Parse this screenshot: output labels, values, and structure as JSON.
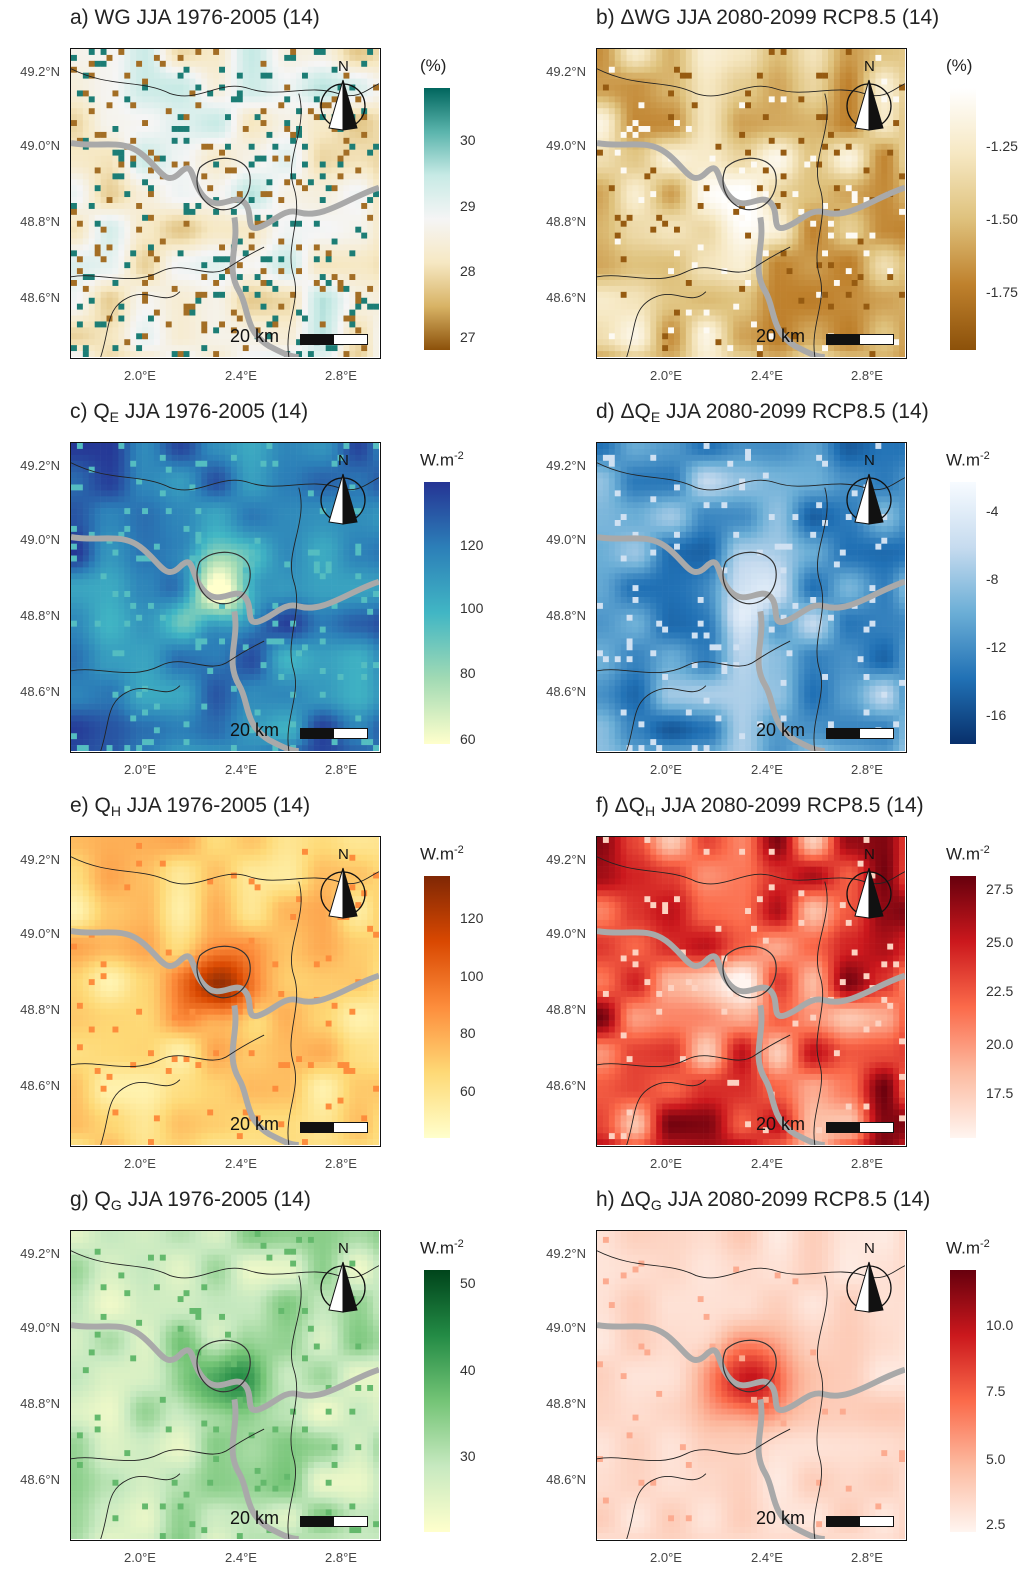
{
  "panels": [
    {
      "title_pre": "a) WG JJA 1976-2005 (14)",
      "title_sub": "",
      "title_post": "",
      "unit": "(%)",
      "unit_sup": "",
      "palette": "teal_brown",
      "ticks": [
        "30",
        "29",
        "28",
        "27"
      ],
      "tick_pos": [
        0.2,
        0.45,
        0.7,
        0.95
      ]
    },
    {
      "title_pre": "b) ΔWG JJA 2080-2099 RCP8.5 (14)",
      "title_sub": "",
      "title_post": "",
      "unit": "(%)",
      "unit_sup": "",
      "palette": "brown_white",
      "ticks": [
        "-1.25",
        "-1.50",
        "-1.75"
      ],
      "tick_pos": [
        0.22,
        0.5,
        0.78
      ]
    },
    {
      "title_pre": "c) Q",
      "title_sub": "E",
      "title_post": " JJA 1976-2005 (14)",
      "unit": "W.m",
      "unit_sup": "-2",
      "palette": "blues_yellow",
      "ticks": [
        "120",
        "100",
        "80",
        "60"
      ],
      "tick_pos": [
        0.24,
        0.48,
        0.73,
        0.98
      ]
    },
    {
      "title_pre": "d) ΔQ",
      "title_sub": "E",
      "title_post": " JJA 2080-2099 RCP8.5 (14)",
      "unit": "W.m",
      "unit_sup": "-2",
      "palette": "blues",
      "ticks": [
        "-4",
        "-8",
        "-12",
        "-16"
      ],
      "tick_pos": [
        0.11,
        0.37,
        0.63,
        0.89
      ]
    },
    {
      "title_pre": "e) Q",
      "title_sub": "H",
      "title_post": " JJA 1976-2005 (14)",
      "unit": "W.m",
      "unit_sup": "-2",
      "palette": "oranges",
      "ticks": [
        "120",
        "100",
        "80",
        "60"
      ],
      "tick_pos": [
        0.16,
        0.38,
        0.6,
        0.82
      ]
    },
    {
      "title_pre": "f) ΔQ",
      "title_sub": "H",
      "title_post": " JJA 2080-2099 RCP8.5 (14)",
      "unit": "W.m",
      "unit_sup": "-2",
      "palette": "reds",
      "ticks": [
        "27.5",
        "25.0",
        "22.5",
        "20.0",
        "17.5"
      ],
      "tick_pos": [
        0.05,
        0.25,
        0.44,
        0.64,
        0.83
      ]
    },
    {
      "title_pre": "g) Q",
      "title_sub": "G",
      "title_post": " JJA 1976-2005 (14)",
      "unit": "W.m",
      "unit_sup": "-2",
      "palette": "greens",
      "ticks": [
        "50",
        "40",
        "30"
      ],
      "tick_pos": [
        0.05,
        0.38,
        0.71
      ]
    },
    {
      "title_pre": "h) ΔQ",
      "title_sub": "G",
      "title_post": " JJA 2080-2099 RCP8.5 (14)",
      "unit": "W.m",
      "unit_sup": "-2",
      "palette": "reds2",
      "ticks": [
        "10.0",
        "7.5",
        "5.0",
        "2.5"
      ],
      "tick_pos": [
        0.21,
        0.46,
        0.72,
        0.97
      ]
    }
  ],
  "axes": {
    "y_labels": [
      "49.2°N",
      "49.0°N",
      "48.8°N",
      "48.6°N"
    ],
    "x_labels": [
      "2.0°E",
      "2.4°E",
      "2.8°E"
    ]
  },
  "scale_bar": {
    "label": "20 km"
  },
  "north_arrow": {
    "label": "N"
  },
  "colors": {
    "teal_brown": [
      "#01665e",
      "#5ab4ac",
      "#c7eae5",
      "#f5f5f5",
      "#f6e8c3",
      "#d8b365",
      "#8c510a"
    ],
    "brown_white": [
      "#ffffff",
      "#f6e8c3",
      "#dfc27d",
      "#bf812d",
      "#8c510a"
    ],
    "blues_yellow": [
      "#253494",
      "#2c7fb8",
      "#41b6c4",
      "#a1dab4",
      "#ffffcc"
    ],
    "blues": [
      "#f7fbff",
      "#c6dbef",
      "#6baed6",
      "#2171b5",
      "#08306b"
    ],
    "oranges": [
      "#7f2704",
      "#d94801",
      "#fd8d3c",
      "#fed976",
      "#ffffcc"
    ],
    "reds": [
      "#67000d",
      "#cb181d",
      "#fb6a4a",
      "#fcbba1",
      "#fff5f0"
    ],
    "greens": [
      "#00441b",
      "#238b45",
      "#74c476",
      "#c7e9c0",
      "#ffffcc"
    ],
    "reds2": [
      "#67000d",
      "#cb181d",
      "#fb6a4a",
      "#fcbba1",
      "#fff5f0"
    ]
  }
}
